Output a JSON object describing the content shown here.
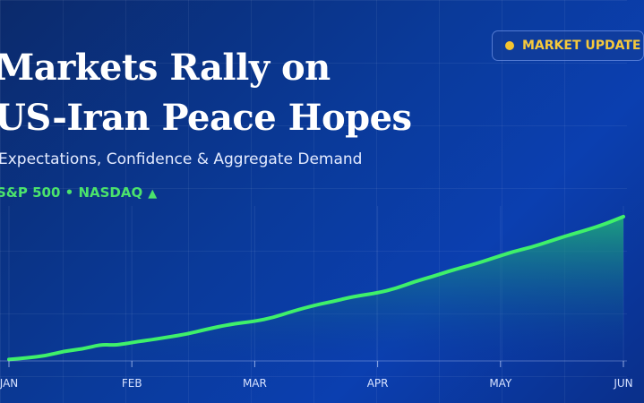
{
  "headline": {
    "line1": "Markets Rally on",
    "line2": "US-Iran Peace Hopes"
  },
  "subtitle": "Expectations, Confidence & Aggregate Demand",
  "tickers": {
    "text": "S&P 500 • NASDAQ",
    "arrow_glyph": "▲"
  },
  "badge": {
    "label": "MARKET UPDATE",
    "dot_color": "#f4c430"
  },
  "colors": {
    "line": "#3ff06a",
    "area_top": "#1fb07a",
    "ticker_green": "#4be36c",
    "badge_text": "#f6c93b"
  },
  "chart_data": {
    "type": "area",
    "title": "",
    "xlabel": "",
    "ylabel": "",
    "categories": [
      "JAN",
      "FEB",
      "MAR",
      "APR",
      "MAY",
      "JUN"
    ],
    "x": [
      0,
      0.15,
      0.3,
      0.45,
      0.6,
      0.75,
      0.85,
      0.95,
      1.05,
      1.15,
      1.3,
      1.45,
      1.6,
      1.8,
      2.0,
      2.15,
      2.3,
      2.5,
      2.65,
      2.8,
      3.0,
      3.15,
      3.3,
      3.45,
      3.6,
      3.8,
      3.95,
      4.1,
      4.25,
      4.4,
      4.55,
      4.7,
      4.85,
      5.0
    ],
    "values": [
      2,
      4,
      7,
      13,
      16,
      22,
      21,
      23,
      26,
      28,
      32,
      36,
      42,
      49,
      53,
      58,
      66,
      75,
      80,
      86,
      91,
      97,
      106,
      113,
      121,
      130,
      138,
      146,
      152,
      160,
      168,
      175,
      183,
      193
    ],
    "ylim": [
      0,
      200
    ],
    "grid": true,
    "legend": "none"
  }
}
